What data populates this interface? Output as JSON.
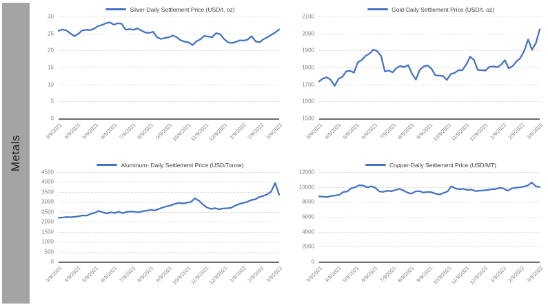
{
  "sidebar": {
    "label": "Metals"
  },
  "colors": {
    "line": "#4472C4",
    "grid": "#d4d4d4",
    "baseline": "#6b6b6b",
    "axis_text": "#7f7f7f",
    "legend_text": "#3f3f3f",
    "sidebar_bg": "#a6a4a0"
  },
  "chart_data": [
    {
      "type": "line",
      "title": "Silver-Daily Settlement Price (USD/t. oz)",
      "ylim": [
        0,
        30
      ],
      "ystep": 5,
      "y_ticks": [
        30,
        25,
        20,
        15,
        10,
        5,
        0
      ],
      "x_labels": [
        "3/9/2021",
        "4/9/2021",
        "5/9/2021",
        "6/9/2021",
        "7/9/2021",
        "8/9/2021",
        "9/9/2021",
        "10/9/2021",
        "11/9/2021",
        "12/9/2021",
        "1/9/2022",
        "2/9/2022",
        "3/9/2022"
      ],
      "grid": "dotted-horizontal",
      "legend_position": "top-center",
      "values": [
        25.8,
        26.2,
        25.9,
        25.0,
        24.2,
        24.9,
        25.9,
        26.1,
        26.0,
        26.4,
        27.2,
        27.5,
        28.0,
        28.3,
        27.6,
        28.0,
        27.9,
        26.1,
        26.3,
        26.1,
        26.5,
        25.9,
        25.3,
        25.2,
        25.5,
        23.9,
        23.4,
        23.7,
        23.9,
        24.4,
        23.9,
        23.0,
        22.6,
        22.4,
        21.6,
        22.7,
        23.3,
        24.3,
        24.1,
        23.9,
        25.1,
        24.8,
        23.4,
        22.4,
        22.2,
        22.5,
        23.0,
        22.9,
        23.2,
        24.2,
        22.7,
        22.4,
        23.3,
        23.9,
        24.6,
        25.3,
        26.2
      ]
    },
    {
      "type": "line",
      "title": "Gold-Daily Settlement Price (USD/t. oz)",
      "ylim": [
        1500,
        2100
      ],
      "ystep": 100,
      "y_ticks": [
        2100,
        2000,
        1900,
        1800,
        1700,
        1600,
        1500
      ],
      "x_labels": [
        "3/9/2021",
        "4/9/2021",
        "5/9/2021",
        "6/9/2021",
        "7/9/2021",
        "8/9/2021",
        "9/9/2021",
        "10/9/2021",
        "11/9/2021",
        "12/9/2021",
        "1/9/2022",
        "2/9/2022",
        "3/9/2022"
      ],
      "grid": "dotted-horizontal",
      "legend_position": "top-center",
      "values": [
        1718,
        1735,
        1742,
        1727,
        1691,
        1733,
        1745,
        1777,
        1780,
        1770,
        1831,
        1843,
        1868,
        1881,
        1905,
        1896,
        1868,
        1776,
        1782,
        1771,
        1797,
        1809,
        1802,
        1814,
        1763,
        1729,
        1786,
        1806,
        1812,
        1794,
        1754,
        1752,
        1750,
        1726,
        1761,
        1768,
        1783,
        1784,
        1816,
        1863,
        1845,
        1785,
        1784,
        1782,
        1804,
        1806,
        1801,
        1816,
        1843,
        1795,
        1808,
        1836,
        1856,
        1898,
        1965,
        1905,
        1943,
        2025
      ]
    },
    {
      "type": "line",
      "title": "Aluminum- Daily Settlement Price (USD/Tonne)",
      "ylim": [
        0,
        4500
      ],
      "ystep": 500,
      "y_ticks": [
        4500,
        4000,
        3500,
        3000,
        2500,
        2000,
        1500,
        1000,
        500,
        0
      ],
      "x_labels": [
        "3/9/2021",
        "4/9/2021",
        "5/9/2021",
        "6/9/2021",
        "7/9/2021",
        "8/9/2021",
        "9/9/2021",
        "10/9/2021",
        "11/9/2021",
        "12/9/2021",
        "1/9/2022",
        "2/9/2022",
        "3/9/2022"
      ],
      "grid": "dotted-horizontal",
      "legend_position": "top-center",
      "values": [
        2200,
        2215,
        2240,
        2230,
        2252,
        2280,
        2320,
        2310,
        2400,
        2450,
        2545,
        2480,
        2420,
        2480,
        2440,
        2505,
        2430,
        2500,
        2520,
        2500,
        2480,
        2530,
        2560,
        2600,
        2570,
        2650,
        2720,
        2780,
        2830,
        2900,
        2950,
        2920,
        2960,
        3000,
        3180,
        3060,
        2870,
        2720,
        2650,
        2685,
        2630,
        2670,
        2680,
        2700,
        2810,
        2890,
        2950,
        3000,
        3090,
        3130,
        3240,
        3300,
        3380,
        3520,
        3950,
        3360
      ]
    },
    {
      "type": "line",
      "title": "Copper-Daily Settlement Price (USD/MT)",
      "ylim": [
        0,
        12000
      ],
      "ystep": 2000,
      "y_ticks": [
        12000,
        10000,
        8000,
        6000,
        4000,
        2000,
        0
      ],
      "x_labels": [
        "3/9/2021",
        "4/9/2021",
        "5/9/2021",
        "6/9/2021",
        "7/9/2021",
        "8/9/2021",
        "9/9/2021",
        "10/9/2021",
        "11/9/2021",
        "12/9/2021",
        "1/9/2022",
        "2/9/2022",
        "3/9/2022"
      ],
      "grid": "dotted-horizontal",
      "legend_position": "top-center",
      "values": [
        8750,
        8700,
        8650,
        8790,
        8850,
        8940,
        9320,
        9400,
        9825,
        9970,
        10250,
        10180,
        9950,
        10100,
        9900,
        9400,
        9350,
        9500,
        9430,
        9600,
        9750,
        9550,
        9250,
        9100,
        9400,
        9450,
        9250,
        9350,
        9300,
        9100,
        9000,
        9200,
        9400,
        10100,
        9800,
        9700,
        9750,
        9600,
        9650,
        9450,
        9500,
        9550,
        9600,
        9700,
        9720,
        9900,
        9800,
        9500,
        9800,
        9900,
        9950,
        10050,
        10200,
        10600,
        10100,
        10000
      ]
    }
  ]
}
